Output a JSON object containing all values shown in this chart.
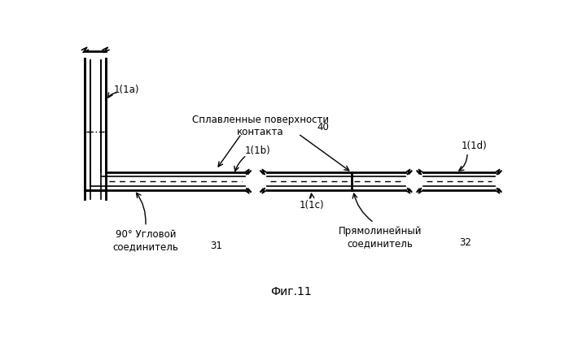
{
  "title": "Фиг.11",
  "background_color": "#ffffff",
  "line_color": "#000000",
  "fig_width": 6.99,
  "fig_height": 4.22,
  "labels": {
    "1a": "1(1a)",
    "1b": "1(1b)",
    "1c": "1(1c)",
    "1d": "1(1d)",
    "fused": "Сплавленные поверхности\nконтакта",
    "40": "40",
    "31": "31",
    "32": "32",
    "connector31": "90° Угловой\nсоединитель",
    "connector32": "Прямолинейный\nсоединитель"
  }
}
